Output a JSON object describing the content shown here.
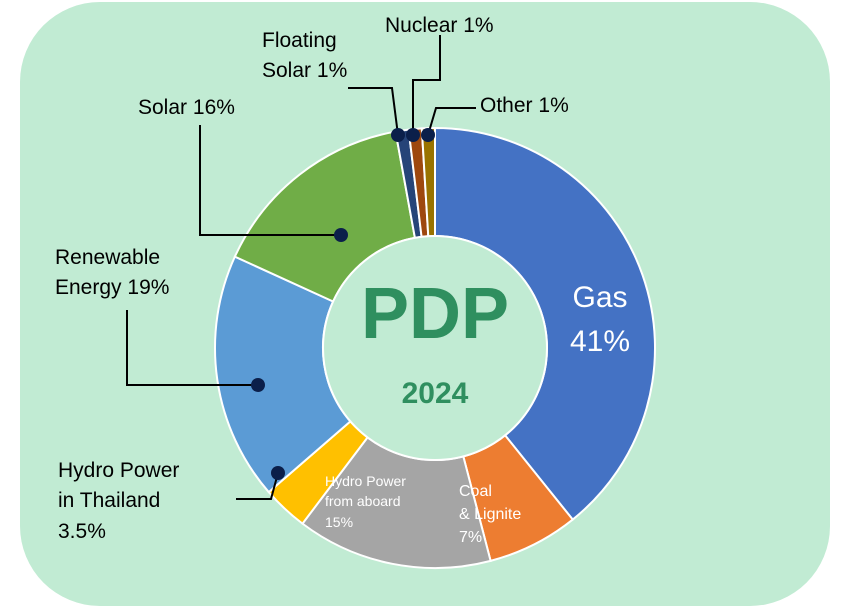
{
  "chart_data": {
    "type": "donut",
    "center_title": "PDP",
    "center_subtitle": "2024",
    "categories": [
      "Gas",
      "Coal\n& Lignite",
      "Hydro Power\nfrom aboard",
      "Hydro Power\nin Thailand",
      "Renewable\nEnergy",
      "Solar",
      "Floating\nSolar",
      "Nuclear",
      "Other"
    ],
    "values": [
      41,
      7,
      15,
      3.5,
      19,
      16,
      1,
      1,
      1
    ],
    "value_labels": [
      "41%",
      "7%",
      "15%",
      "3.5%",
      "19%",
      "16%",
      "1%",
      "1%",
      "1%"
    ],
    "colors": [
      "#4472c4",
      "#ed7d31",
      "#a5a5a5",
      "#ffc000",
      "#5b9bd5",
      "#70ad47",
      "#264478",
      "#9e480e",
      "#997300"
    ]
  }
}
